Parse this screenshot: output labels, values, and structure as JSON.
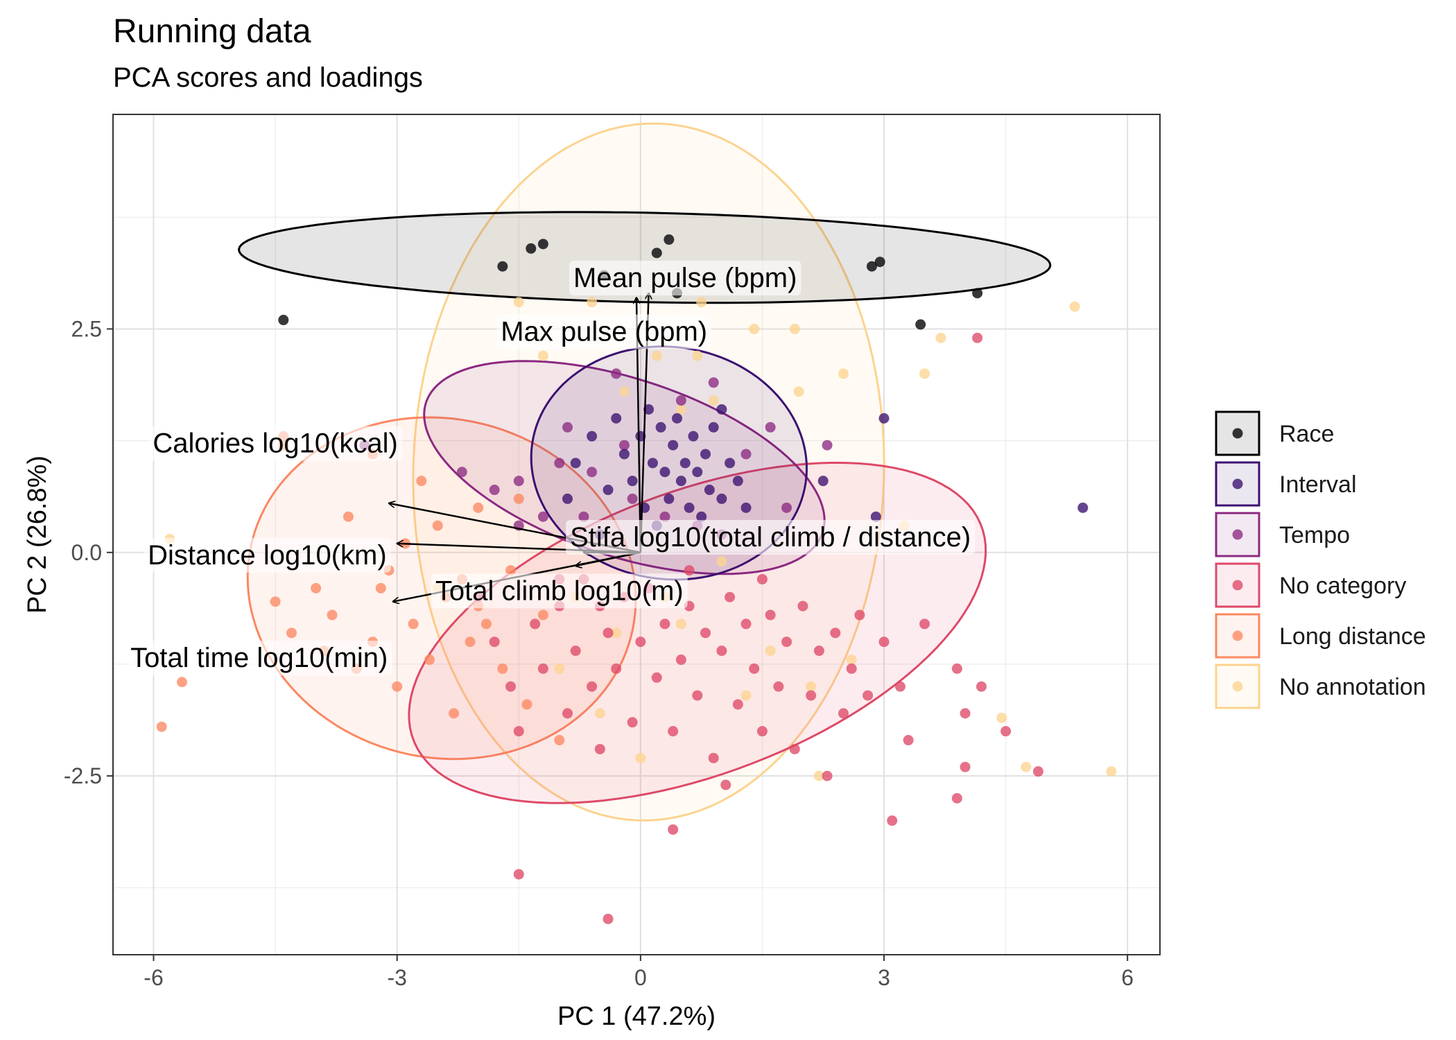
{
  "chart_data": {
    "type": "scatter",
    "title": "Running data",
    "subtitle": "PCA scores and loadings",
    "xlabel": "PC 1 (47.2%)",
    "ylabel": "PC 2 (26.8%)",
    "xlim": [
      -6.5,
      6.4
    ],
    "ylim": [
      -4.5,
      4.9
    ],
    "xticks": [
      -6,
      -3,
      0,
      3,
      6
    ],
    "xtick_labels": [
      "-6",
      "-3",
      "0",
      "3",
      "6"
    ],
    "yticks": [
      -2.5,
      0,
      2.5
    ],
    "ytick_labels": [
      "-2.5",
      "0.0",
      "2.5"
    ],
    "grid": true,
    "legend_position": "right",
    "series": [
      {
        "name": "Race",
        "color": "#000004",
        "ellipse": {
          "cx": 0.05,
          "cy": 3.3,
          "rx": 5.0,
          "ry": 0.5,
          "angle": -1
        },
        "points": [
          [
            -4.4,
            2.6
          ],
          [
            -1.7,
            3.2
          ],
          [
            -1.35,
            3.4
          ],
          [
            -1.2,
            3.45
          ],
          [
            -0.45,
            3.1
          ],
          [
            0.2,
            3.35
          ],
          [
            0.35,
            3.5
          ],
          [
            0.45,
            2.9
          ],
          [
            2.85,
            3.2
          ],
          [
            2.95,
            3.25
          ],
          [
            3.45,
            2.55
          ],
          [
            4.15,
            2.9
          ]
        ]
      },
      {
        "name": "Interval",
        "color": "#3b0f70",
        "ellipse": {
          "cx": 0.35,
          "cy": 1.0,
          "rx": 1.7,
          "ry": 1.3,
          "angle": -5
        },
        "points": [
          [
            -0.8,
            1.0
          ],
          [
            -0.6,
            1.3
          ],
          [
            -0.4,
            0.7
          ],
          [
            -0.3,
            1.5
          ],
          [
            -0.2,
            1.1
          ],
          [
            -0.1,
            0.8
          ],
          [
            0.0,
            1.3
          ],
          [
            0.05,
            0.5
          ],
          [
            0.1,
            1.6
          ],
          [
            0.15,
            1.0
          ],
          [
            0.2,
            0.3
          ],
          [
            0.25,
            1.4
          ],
          [
            0.3,
            0.9
          ],
          [
            0.35,
            0.6
          ],
          [
            0.4,
            1.2
          ],
          [
            0.45,
            1.5
          ],
          [
            0.5,
            0.8
          ],
          [
            0.55,
            1.0
          ],
          [
            0.6,
            0.5
          ],
          [
            0.65,
            1.3
          ],
          [
            0.7,
            0.9
          ],
          [
            0.75,
            0.4
          ],
          [
            0.8,
            1.1
          ],
          [
            0.85,
            0.7
          ],
          [
            0.9,
            1.4
          ],
          [
            1.0,
            0.6
          ],
          [
            1.1,
            1.0
          ],
          [
            1.2,
            0.8
          ],
          [
            1.3,
            0.5
          ],
          [
            1.0,
            1.6
          ],
          [
            -0.5,
            0.2
          ],
          [
            -0.9,
            0.6
          ],
          [
            2.25,
            0.8
          ],
          [
            3.0,
            1.5
          ],
          [
            5.45,
            0.5
          ],
          [
            2.9,
            0.4
          ]
        ]
      },
      {
        "name": "Tempo",
        "color": "#8c2981",
        "ellipse": {
          "cx": -0.2,
          "cy": 0.95,
          "rx": 2.55,
          "ry": 1.0,
          "angle": -16
        },
        "points": [
          [
            -3.4,
            1.2
          ],
          [
            -2.2,
            0.9
          ],
          [
            -1.8,
            0.7
          ],
          [
            -1.5,
            0.8
          ],
          [
            -1.2,
            0.4
          ],
          [
            -1.0,
            1.0
          ],
          [
            -0.9,
            1.4
          ],
          [
            -0.6,
            0.9
          ],
          [
            -0.3,
            2.0
          ],
          [
            -0.2,
            1.2
          ],
          [
            0.3,
            0.4
          ],
          [
            0.5,
            1.7
          ],
          [
            0.7,
            0.3
          ],
          [
            1.0,
            0.2
          ],
          [
            1.3,
            1.1
          ],
          [
            1.6,
            1.4
          ],
          [
            2.3,
            1.2
          ],
          [
            1.8,
            0.5
          ],
          [
            -0.7,
            0.4
          ],
          [
            0.9,
            1.9
          ],
          [
            -1.5,
            0.3
          ],
          [
            -0.1,
            0.6
          ]
        ]
      },
      {
        "name": "No category",
        "color": "#de4968",
        "ellipse": {
          "cx": 0.7,
          "cy": -0.9,
          "rx": 3.7,
          "ry": 1.6,
          "angle": 18
        },
        "points": [
          [
            -2.0,
            -0.5
          ],
          [
            -1.8,
            -1.0
          ],
          [
            -1.6,
            -1.5
          ],
          [
            -1.5,
            -2.0
          ],
          [
            -1.3,
            -0.8
          ],
          [
            -1.2,
            -1.3
          ],
          [
            -1.0,
            -0.6
          ],
          [
            -0.9,
            -1.8
          ],
          [
            -0.8,
            -1.1
          ],
          [
            -0.7,
            -0.3
          ],
          [
            -0.6,
            -1.5
          ],
          [
            -0.5,
            -2.2
          ],
          [
            -0.4,
            -0.9
          ],
          [
            -0.3,
            -1.3
          ],
          [
            -0.2,
            -0.5
          ],
          [
            -0.1,
            -1.9
          ],
          [
            0.0,
            -1.0
          ],
          [
            0.1,
            -0.4
          ],
          [
            0.2,
            -1.4
          ],
          [
            0.3,
            -0.8
          ],
          [
            0.4,
            -2.0
          ],
          [
            0.5,
            -1.2
          ],
          [
            0.6,
            -0.6
          ],
          [
            0.7,
            -1.6
          ],
          [
            0.8,
            -0.9
          ],
          [
            0.9,
            -2.3
          ],
          [
            1.0,
            -1.1
          ],
          [
            1.1,
            -0.5
          ],
          [
            1.2,
            -1.7
          ],
          [
            1.3,
            -0.8
          ],
          [
            1.4,
            -1.3
          ],
          [
            1.5,
            -2.0
          ],
          [
            1.6,
            -0.7
          ],
          [
            1.7,
            -1.5
          ],
          [
            1.8,
            -1.0
          ],
          [
            1.9,
            -2.2
          ],
          [
            2.0,
            -0.6
          ],
          [
            2.1,
            -1.6
          ],
          [
            2.2,
            -1.1
          ],
          [
            2.3,
            -2.5
          ],
          [
            2.4,
            -0.9
          ],
          [
            2.5,
            -1.8
          ],
          [
            2.6,
            -1.3
          ],
          [
            2.7,
            -0.7
          ],
          [
            2.8,
            -1.6
          ],
          [
            3.0,
            -1.0
          ],
          [
            3.2,
            -1.5
          ],
          [
            3.5,
            -0.8
          ],
          [
            3.9,
            -1.3
          ],
          [
            4.0,
            -1.8
          ],
          [
            4.2,
            -1.5
          ],
          [
            4.0,
            -2.4
          ],
          [
            4.5,
            -2.0
          ],
          [
            4.9,
            -2.45
          ],
          [
            3.1,
            -3.0
          ],
          [
            1.05,
            -2.6
          ],
          [
            0.4,
            -3.1
          ],
          [
            -1.5,
            -3.6
          ],
          [
            -0.4,
            -4.1
          ],
          [
            4.15,
            2.4
          ],
          [
            3.9,
            -2.75
          ],
          [
            3.3,
            -2.1
          ],
          [
            -1.0,
            -0.3
          ],
          [
            -0.5,
            -0.6
          ],
          [
            0.6,
            -0.2
          ],
          [
            1.5,
            -0.3
          ]
        ]
      },
      {
        "name": "Long distance",
        "color": "#fb8861",
        "ellipse": {
          "cx": -2.45,
          "cy": -0.4,
          "rx": 2.4,
          "ry": 1.9,
          "angle": -8
        },
        "points": [
          [
            -5.9,
            -1.95
          ],
          [
            -5.65,
            -1.45
          ],
          [
            -4.5,
            -0.55
          ],
          [
            -4.4,
            1.3
          ],
          [
            -4.4,
            1.2
          ],
          [
            -4.3,
            -0.9
          ],
          [
            -4.0,
            -0.4
          ],
          [
            -3.9,
            -1.1
          ],
          [
            -3.8,
            -0.7
          ],
          [
            -3.6,
            0.4
          ],
          [
            -3.5,
            -1.3
          ],
          [
            -3.3,
            -1.0
          ],
          [
            -3.2,
            -0.4
          ],
          [
            -3.0,
            -1.5
          ],
          [
            -2.9,
            0.1
          ],
          [
            -2.8,
            -0.8
          ],
          [
            -2.6,
            -1.2
          ],
          [
            -2.5,
            0.3
          ],
          [
            -2.4,
            -0.5
          ],
          [
            -2.3,
            -1.8
          ],
          [
            -2.2,
            -0.3
          ],
          [
            -2.1,
            -1.0
          ],
          [
            -2.0,
            0.5
          ],
          [
            -1.9,
            -0.8
          ],
          [
            -1.7,
            -1.3
          ],
          [
            -1.6,
            -0.2
          ],
          [
            -1.4,
            -1.7
          ],
          [
            -1.2,
            -0.7
          ],
          [
            -1.0,
            -2.1
          ],
          [
            -3.3,
            1.1
          ],
          [
            -2.7,
            0.8
          ],
          [
            -3.1,
            -0.2
          ],
          [
            -2.0,
            -0.6
          ],
          [
            -1.5,
            0.6
          ]
        ]
      },
      {
        "name": "No annotation",
        "color": "#fcd38f",
        "ellipse": {
          "cx": 0.1,
          "cy": 0.9,
          "rx": 3.9,
          "ry": 2.9,
          "angle": 88
        },
        "points": [
          [
            -5.8,
            0.15
          ],
          [
            -2.5,
            -0.4
          ],
          [
            -1.5,
            2.8
          ],
          [
            -1.2,
            2.2
          ],
          [
            -0.6,
            2.8
          ],
          [
            -0.2,
            1.8
          ],
          [
            0.2,
            2.2
          ],
          [
            0.5,
            1.6
          ],
          [
            0.7,
            2.2
          ],
          [
            0.75,
            2.8
          ],
          [
            0.9,
            1.7
          ],
          [
            1.4,
            2.5
          ],
          [
            1.9,
            2.5
          ],
          [
            1.95,
            1.8
          ],
          [
            2.5,
            2.0
          ],
          [
            2.6,
            -1.2
          ],
          [
            3.25,
            0.3
          ],
          [
            3.5,
            2.0
          ],
          [
            3.7,
            2.4
          ],
          [
            5.35,
            2.75
          ],
          [
            4.45,
            -1.85
          ],
          [
            4.75,
            -2.4
          ],
          [
            5.8,
            -2.45
          ],
          [
            2.2,
            -2.5
          ],
          [
            1.3,
            -1.6
          ],
          [
            0.3,
            -0.5
          ],
          [
            -0.5,
            -1.8
          ],
          [
            -0.3,
            -0.9
          ],
          [
            -1.0,
            -1.3
          ],
          [
            0.5,
            -0.8
          ],
          [
            1.0,
            -0.1
          ],
          [
            0.0,
            -2.3
          ],
          [
            2.1,
            -1.5
          ],
          [
            -0.8,
            -0.5
          ],
          [
            1.6,
            -1.1
          ]
        ]
      }
    ],
    "loadings": [
      {
        "label": "Mean pulse (bpm)",
        "x": 0.1,
        "y": 2.9
      },
      {
        "label": "Max pulse (bpm)",
        "x": -0.05,
        "y": 2.85
      },
      {
        "label": "Calories log10(kcal)",
        "x": -3.1,
        "y": 0.55
      },
      {
        "label": "Distance log10(km)",
        "x": -3.0,
        "y": 0.1
      },
      {
        "label": "Total time log10(min)",
        "x": -3.05,
        "y": -0.55
      },
      {
        "label": "Total climb log10(m)",
        "x": -0.8,
        "y": -0.15
      },
      {
        "label": "Stifa log10(total climb / distance)",
        "x": -0.7,
        "y": 0.0
      }
    ]
  }
}
